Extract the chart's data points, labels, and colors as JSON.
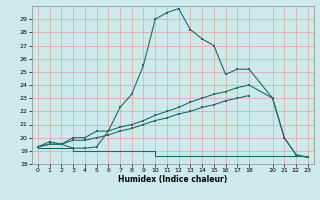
{
  "xlabel": "Humidex (Indice chaleur)",
  "bg_color": "#cceaea",
  "grid_color": "#e8a0a0",
  "line_color": "#1a6b6b",
  "line1_x": [
    0,
    1,
    2,
    3,
    4,
    5,
    6,
    7,
    8,
    9,
    10,
    11,
    12,
    13,
    14,
    15,
    16,
    17,
    18,
    20,
    21,
    22,
    23
  ],
  "line1_y": [
    19.3,
    19.7,
    19.5,
    19.2,
    19.2,
    19.3,
    20.5,
    22.3,
    23.3,
    25.5,
    29.0,
    29.5,
    29.8,
    28.2,
    27.5,
    27.0,
    24.8,
    25.2,
    25.2,
    23.0,
    20.0,
    18.7,
    18.5
  ],
  "line2_x": [
    0,
    1,
    2,
    3,
    4,
    5,
    6,
    7,
    8,
    9,
    10,
    11,
    12,
    13,
    14,
    15,
    16,
    17,
    18,
    20,
    21,
    22,
    23
  ],
  "line2_y": [
    19.3,
    19.5,
    19.5,
    20.0,
    20.0,
    20.5,
    20.5,
    20.8,
    21.0,
    21.3,
    21.7,
    22.0,
    22.3,
    22.7,
    23.0,
    23.3,
    23.5,
    23.8,
    24.0,
    23.0,
    20.0,
    18.7,
    18.5
  ],
  "line3_x": [
    0,
    1,
    2,
    3,
    4,
    5,
    6,
    7,
    8,
    9,
    10,
    11,
    12,
    13,
    14,
    15,
    16,
    17,
    18
  ],
  "line3_y": [
    19.3,
    19.5,
    19.5,
    19.8,
    19.8,
    20.0,
    20.2,
    20.5,
    20.7,
    21.0,
    21.3,
    21.5,
    21.8,
    22.0,
    22.3,
    22.5,
    22.8,
    23.0,
    23.2
  ],
  "line4_x": [
    0,
    1,
    2,
    3,
    4,
    5,
    6,
    7,
    8,
    9,
    10,
    11,
    12,
    13,
    14,
    15,
    16,
    17,
    18,
    20,
    21,
    22,
    23
  ],
  "line4_y": [
    19.2,
    19.2,
    19.2,
    19.0,
    19.0,
    19.0,
    19.0,
    19.0,
    19.0,
    19.0,
    18.6,
    18.6,
    18.6,
    18.6,
    18.6,
    18.6,
    18.6,
    18.6,
    18.6,
    18.6,
    18.6,
    18.6,
    18.5
  ],
  "xlim": [
    -0.5,
    23.5
  ],
  "ylim": [
    18,
    30
  ],
  "yticks": [
    18,
    19,
    20,
    21,
    22,
    23,
    24,
    25,
    26,
    27,
    28,
    29
  ],
  "xticks": [
    0,
    1,
    2,
    3,
    4,
    5,
    6,
    7,
    8,
    9,
    10,
    11,
    12,
    13,
    14,
    15,
    16,
    17,
    18,
    20,
    21,
    22,
    23
  ]
}
